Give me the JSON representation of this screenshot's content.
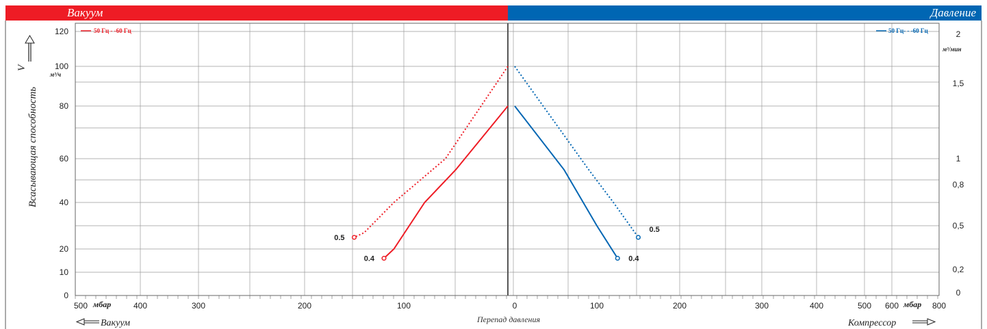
{
  "header": {
    "left_title": "Вакуум",
    "right_title": "Давление",
    "left_color": "#ee1c25",
    "right_color": "#0066b3"
  },
  "axes": {
    "y_title": "Всасывающая способность",
    "y_symbol": "V",
    "y_left_unit": "м³/ч",
    "y_right_unit": "м³/мин",
    "x_center_title": "Перепад давления",
    "x_unit": "мбар",
    "bottom_left_label": "Вакуум",
    "bottom_right_label": "Компрессор"
  },
  "legends": {
    "left": "50 Гц - -60 Гц",
    "right": "50 Гц- - -60 Гц"
  },
  "chart_data": {
    "type": "line",
    "scale": "log-like (non-linear) axes",
    "y_left": {
      "unit": "м³/ч",
      "ticks": [
        0,
        10,
        20,
        40,
        60,
        80,
        100,
        120
      ]
    },
    "y_right": {
      "unit": "м³/мин",
      "ticks": [
        "0",
        "0,2",
        "0,5",
        "0,8",
        "1",
        "1,5",
        "2"
      ]
    },
    "x_vacuum": {
      "unit": "мбар",
      "ticks": [
        500,
        400,
        300,
        200,
        100
      ],
      "direction": "decreasing to right, 0 at center"
    },
    "x_pressure": {
      "unit": "мбар",
      "ticks": [
        0,
        100,
        200,
        300,
        400,
        500,
        600,
        800
      ]
    },
    "series": [
      {
        "side": "vacuum",
        "label": "0.5",
        "style": "dotted",
        "freq": "60 Гц",
        "color": "#ee1c25",
        "points": [
          [
            0,
            100
          ],
          [
            60,
            60
          ],
          [
            110,
            40
          ],
          [
            140,
            27
          ],
          [
            150,
            25
          ]
        ]
      },
      {
        "side": "vacuum",
        "label": "0.4",
        "style": "solid",
        "freq": "50 Гц",
        "color": "#ee1c25",
        "points": [
          [
            0,
            80
          ],
          [
            50,
            55
          ],
          [
            80,
            40
          ],
          [
            110,
            20
          ],
          [
            120,
            16
          ]
        ]
      },
      {
        "side": "pressure",
        "label": "0.5",
        "style": "dotted",
        "freq": "60 Гц",
        "color": "#0066b3",
        "points": [
          [
            0,
            100
          ],
          [
            90,
            55
          ],
          [
            120,
            40
          ],
          [
            150,
            25
          ]
        ]
      },
      {
        "side": "pressure",
        "label": "0.4",
        "style": "solid",
        "freq": "50 Гц",
        "color": "#0066b3",
        "points": [
          [
            0,
            80
          ],
          [
            60,
            55
          ],
          [
            100,
            30
          ],
          [
            125,
            16
          ]
        ]
      }
    ]
  }
}
